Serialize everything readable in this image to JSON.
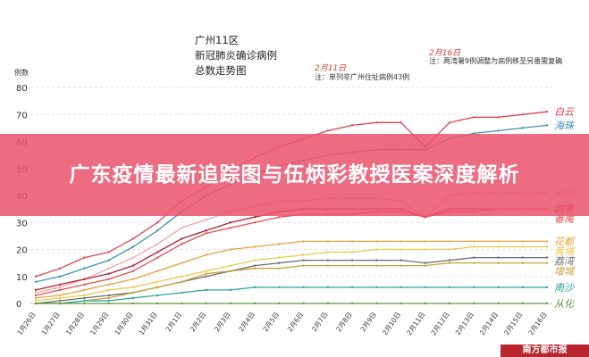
{
  "title": {
    "line1": "广州11区",
    "line2": "新冠肺炎确诊病例",
    "line3": "总数走势图"
  },
  "annotations": [
    {
      "date": "2月11日",
      "text": "注：单列非广州住址病例43例"
    },
    {
      "date": "2月16日",
      "text": "注：两湾暑9例调整为病例移至另番需复确"
    }
  ],
  "banner": {
    "text": "广东疫情最新追踪图与伍炳彩教授医案深度解析"
  },
  "watermark": {
    "text": "南方都市报"
  },
  "chart_data": {
    "type": "line",
    "title": "广州11区 新冠肺炎确诊病例 总数走势图",
    "ylabel": "例数",
    "ylim": [
      0,
      80
    ],
    "yticks": [
      0,
      10,
      20,
      30,
      40,
      50,
      60,
      70,
      80
    ],
    "x": [
      "1月26日",
      "1月27日",
      "1月28日",
      "1月29日",
      "1月30日",
      "1月31日",
      "2月1日",
      "2月2日",
      "2月3日",
      "2月4日",
      "2月5日",
      "2月6日",
      "2月7日",
      "2月8日",
      "2月9日",
      "2月10日",
      "2月11日",
      "2月12日",
      "2月13日",
      "2月14日",
      "2月15日",
      "2月16日"
    ],
    "grid": "horizontal-dashed",
    "legend": "right-end-labels",
    "series": [
      {
        "name": "白云",
        "color": "#d94850",
        "values": [
          10,
          13,
          17,
          19,
          24,
          30,
          38,
          43,
          49,
          54,
          58,
          61,
          64,
          66,
          67,
          67,
          58,
          67,
          69,
          69,
          70,
          71
        ]
      },
      {
        "name": "海珠",
        "color": "#3e8fb5",
        "values": [
          8,
          10,
          13,
          16,
          21,
          27,
          34,
          40,
          44,
          48,
          51,
          53,
          55,
          56,
          57,
          57,
          57,
          61,
          63,
          64,
          65,
          66
        ]
      },
      {
        "name": "天河",
        "color": "#f0a6a8",
        "values": [
          4,
          6,
          9,
          13,
          17,
          22,
          28,
          31,
          34,
          36,
          38,
          38,
          39,
          39,
          39,
          38,
          32,
          40,
          41,
          41,
          41,
          41
        ]
      },
      {
        "name": "越秀",
        "color": "#b41e2c",
        "values": [
          5,
          7,
          9,
          11,
          14,
          19,
          24,
          27,
          30,
          32,
          34,
          35,
          35,
          35,
          35,
          35,
          32,
          35,
          35,
          35,
          35,
          35
        ]
      },
      {
        "name": "番禺",
        "color": "#e85050",
        "values": [
          3,
          5,
          7,
          9,
          12,
          17,
          22,
          26,
          28,
          30,
          32,
          33,
          33,
          33,
          34,
          34,
          32,
          34,
          34,
          35,
          35,
          35
        ]
      },
      {
        "name": "花都",
        "color": "#e6a23c",
        "values": [
          2,
          3,
          5,
          7,
          9,
          12,
          15,
          18,
          20,
          21,
          22,
          23,
          23,
          23,
          23,
          23,
          23,
          23,
          23,
          23,
          23,
          23
        ]
      },
      {
        "name": "黄埔",
        "color": "#e9c94a",
        "values": [
          1,
          2,
          3,
          5,
          6,
          8,
          10,
          12,
          14,
          16,
          17,
          18,
          19,
          19,
          20,
          20,
          20,
          20,
          21,
          21,
          21,
          21
        ]
      },
      {
        "name": "荔湾",
        "color": "#6b6b6b",
        "values": [
          0,
          1,
          2,
          3,
          4,
          6,
          8,
          10,
          12,
          14,
          15,
          16,
          16,
          16,
          16,
          16,
          15,
          16,
          17,
          17,
          17,
          17
        ]
      },
      {
        "name": "增城",
        "color": "#c9a23a",
        "values": [
          0,
          0,
          1,
          2,
          4,
          6,
          8,
          11,
          12,
          13,
          13,
          14,
          14,
          14,
          14,
          14,
          14,
          15,
          15,
          15,
          15,
          15
        ]
      },
      {
        "name": "南沙",
        "color": "#2aa59a",
        "values": [
          0,
          0,
          1,
          1,
          2,
          3,
          4,
          5,
          5,
          6,
          6,
          6,
          6,
          6,
          6,
          6,
          6,
          6,
          6,
          6,
          6,
          6
        ]
      },
      {
        "name": "从化",
        "color": "#5b9a3a",
        "values": [
          0,
          0,
          0,
          0,
          0,
          0,
          0,
          0,
          0,
          0,
          0,
          0,
          0,
          0,
          0,
          0,
          0,
          0,
          0,
          0,
          0,
          0
        ]
      }
    ]
  }
}
